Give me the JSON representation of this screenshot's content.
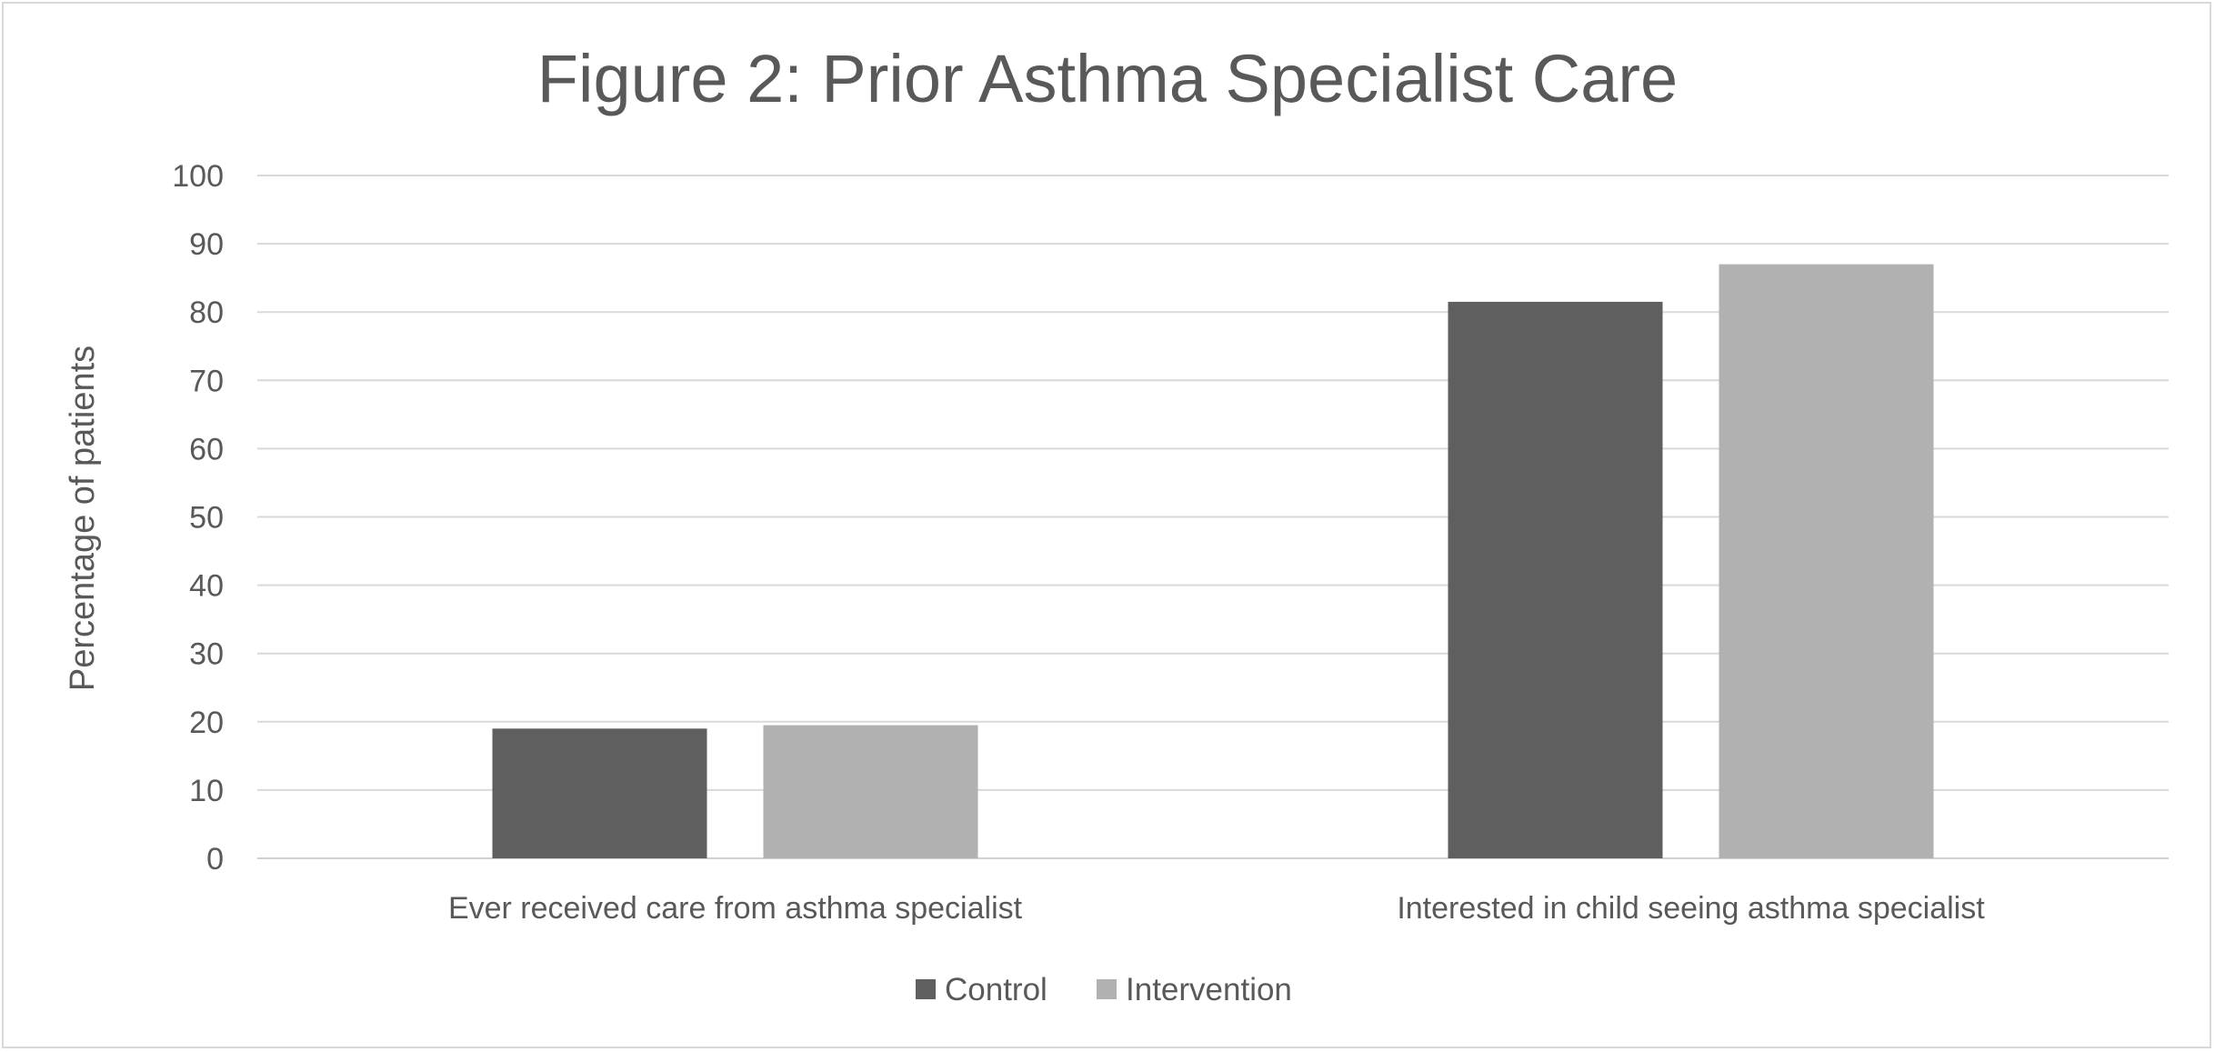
{
  "chart_data": {
    "type": "bar",
    "title": "Figure 2: Prior Asthma Specialist Care",
    "xlabel": "",
    "ylabel": "Percentage of patients",
    "ylim": [
      0,
      100
    ],
    "yticks": [
      "0",
      "10",
      "20",
      "30",
      "40",
      "50",
      "60",
      "70",
      "80",
      "90",
      "100"
    ],
    "categories": [
      "Ever received care from asthma specialist",
      "Interested in child seeing asthma specialist"
    ],
    "series": [
      {
        "name": "Control",
        "color": "#5f5f5f",
        "values": [
          19,
          81.5
        ]
      },
      {
        "name": "Intervention",
        "color": "#b1b1b1",
        "values": [
          19.5,
          87
        ]
      }
    ],
    "grid": true,
    "legend_position": "bottom"
  }
}
